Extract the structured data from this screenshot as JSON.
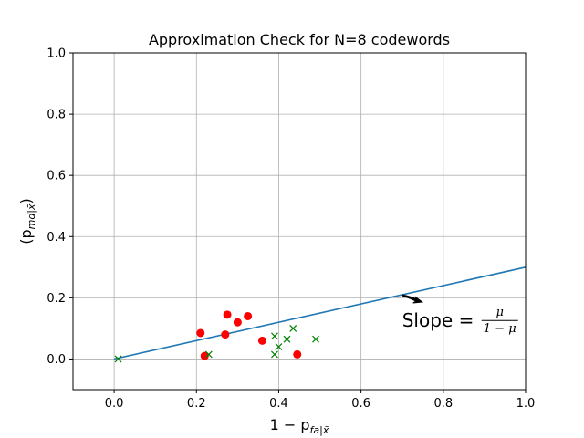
{
  "chart_data": {
    "type": "scatter",
    "title": "Approximation Check for N=8 codewords",
    "xlabel": {
      "base": "1 − p",
      "sub": "fa|x̄"
    },
    "ylabel": {
      "open": "(p",
      "sub": "md|x̄",
      "close": ")"
    },
    "xlim": [
      -0.1,
      1.0
    ],
    "ylim": [
      -0.1,
      1.0
    ],
    "xticks": [
      0.0,
      0.2,
      0.4,
      0.6,
      0.8,
      1.0
    ],
    "yticks": [
      0.0,
      0.2,
      0.4,
      0.6,
      0.8,
      1.0
    ],
    "xtick_labels": [
      "0.0",
      "0.2",
      "0.4",
      "0.6",
      "0.8",
      "1.0"
    ],
    "ytick_labels": [
      "0.0",
      "0.2",
      "0.4",
      "0.6",
      "0.8",
      "1.0"
    ],
    "grid": true,
    "series": [
      {
        "marker": "circle",
        "color": "#ff0000",
        "x": [
          0.21,
          0.22,
          0.27,
          0.275,
          0.3,
          0.325,
          0.36,
          0.445
        ],
        "y": [
          0.085,
          0.01,
          0.08,
          0.145,
          0.12,
          0.14,
          0.06,
          0.015
        ]
      },
      {
        "marker": "x",
        "color": "#008000",
        "x": [
          0.01,
          0.23,
          0.39,
          0.39,
          0.4,
          0.42,
          0.435,
          0.49
        ],
        "y": [
          0.0,
          0.015,
          0.075,
          0.015,
          0.04,
          0.065,
          0.1,
          0.065
        ]
      },
      {
        "marker": "line",
        "color": "#1f77b4",
        "x": [
          0.0,
          1.0
        ],
        "y": [
          0.0,
          0.3
        ]
      }
    ],
    "annotation": {
      "text": "Slope =",
      "numerator": "μ",
      "denominator": "1 − μ",
      "text_at": [
        0.7,
        0.105
      ],
      "arrow_to": [
        0.7,
        0.21
      ]
    }
  }
}
